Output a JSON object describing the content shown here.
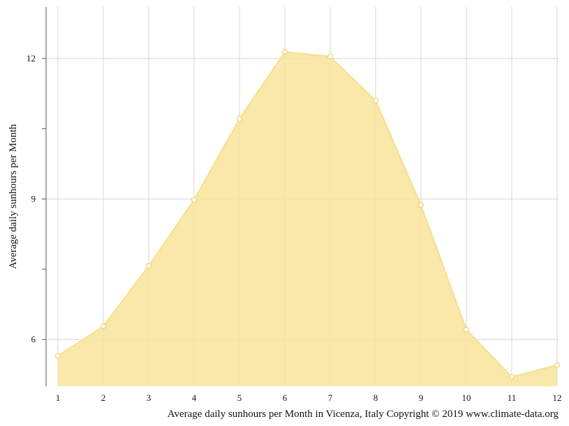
{
  "chart_data": {
    "type": "area",
    "title": "",
    "caption": "Average daily sunhours per Month in Vicenza, Italy Copyright © 2019 www.climate-data.org",
    "xlabel": "",
    "ylabel": "Average daily sunhours per Month",
    "x": [
      1,
      2,
      3,
      4,
      5,
      6,
      7,
      8,
      9,
      10,
      11,
      12
    ],
    "x_tick_labels": [
      "1",
      "2",
      "3",
      "4",
      "5",
      "6",
      "7",
      "8",
      "9",
      "10",
      "11",
      "12"
    ],
    "y_tick_labels": [
      "6",
      "9",
      "12"
    ],
    "y_ticks": [
      6,
      9,
      12
    ],
    "ylim": [
      5.0,
      13.1
    ],
    "series": [
      {
        "values": [
          5.65,
          6.28,
          7.57,
          8.98,
          10.71,
          12.14,
          12.04,
          11.1,
          8.87,
          6.21,
          5.2,
          5.45
        ]
      }
    ],
    "grid": true,
    "colors": {
      "fill": "#f8e49a",
      "line": "#f5e08d",
      "marker_fill": "#ffffff",
      "grid": "#d4d4d4",
      "axis": "#555555"
    }
  }
}
